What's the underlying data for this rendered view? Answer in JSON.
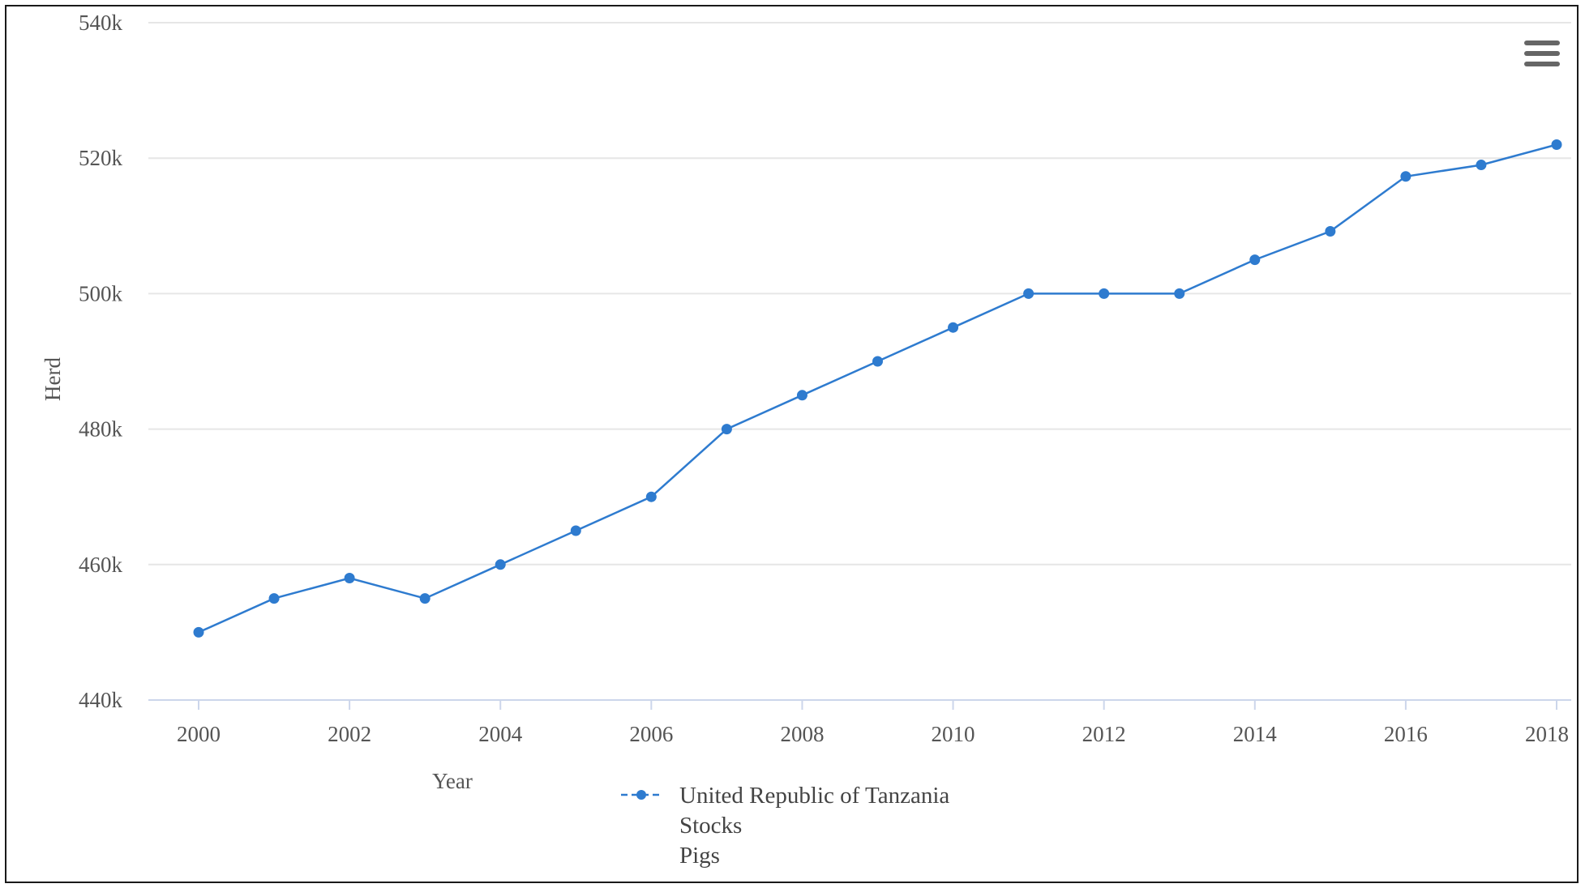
{
  "chart_data": {
    "type": "line",
    "xlabel": "Year",
    "ylabel": "Herd",
    "ylim": [
      440000,
      540000
    ],
    "xlim": [
      2000,
      2018
    ],
    "y_ticks": [
      440000,
      460000,
      480000,
      500000,
      520000,
      540000
    ],
    "y_tick_labels": [
      "440k",
      "460k",
      "480k",
      "500k",
      "520k",
      "540k"
    ],
    "x_ticks": [
      2000,
      2002,
      2004,
      2006,
      2008,
      2010,
      2012,
      2014,
      2016,
      2018
    ],
    "x_tick_labels": [
      "2000",
      "2002",
      "2004",
      "2006",
      "2008",
      "2010",
      "2012",
      "2014",
      "2016",
      "2018"
    ],
    "grid": true,
    "legend_position": "bottom-center",
    "series": [
      {
        "name": [
          "United Republic of Tanzania",
          "Stocks",
          "Pigs"
        ],
        "color": "#2e7bcf",
        "x": [
          2000,
          2001,
          2002,
          2003,
          2004,
          2005,
          2006,
          2007,
          2008,
          2009,
          2010,
          2011,
          2012,
          2013,
          2014,
          2015,
          2016,
          2017,
          2018
        ],
        "values": [
          450000,
          455000,
          458000,
          455000,
          460000,
          465000,
          470000,
          480000,
          485000,
          490000,
          495000,
          500000,
          500000,
          500000,
          505000,
          509200,
          517300,
          519000,
          522000
        ]
      }
    ]
  },
  "ui": {
    "menu_icon": "hamburger-menu-icon"
  }
}
